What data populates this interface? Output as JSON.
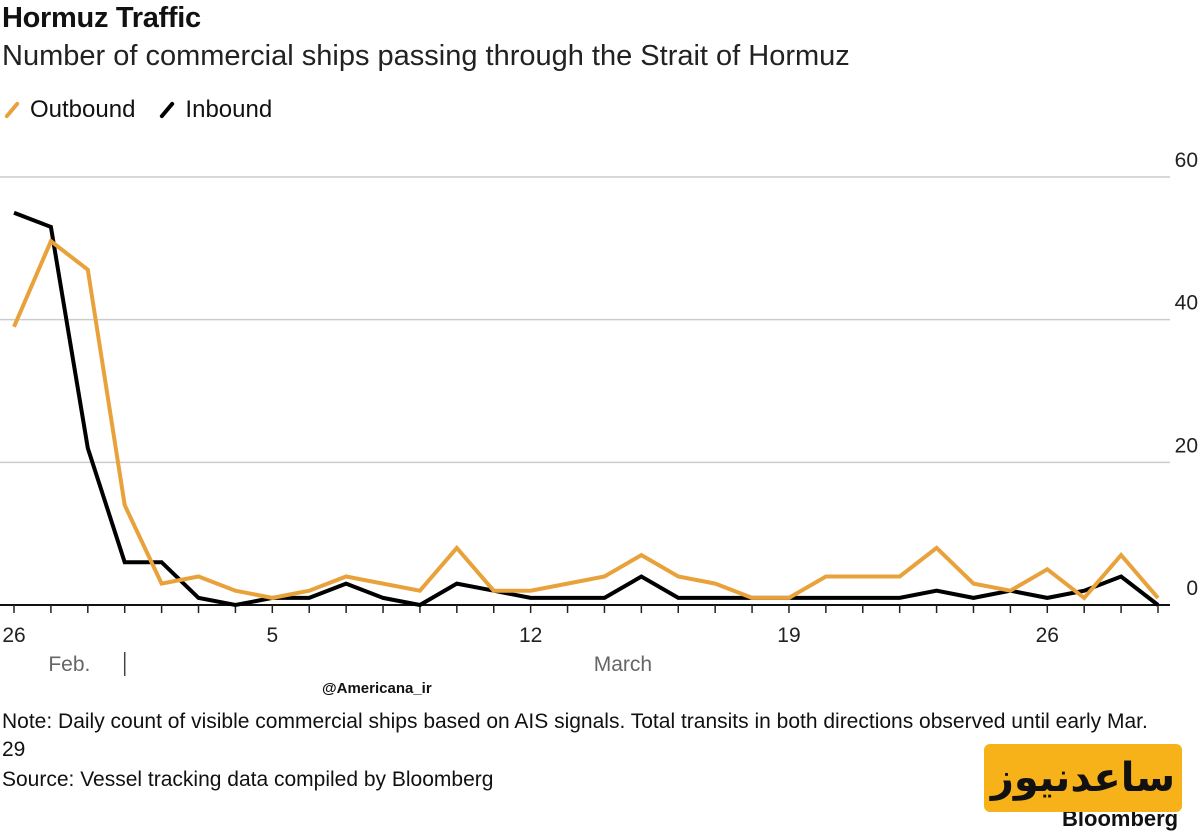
{
  "header": {
    "title": "Hormuz Traffic",
    "subtitle": "Number of commercial ships passing through the Strait of Hormuz"
  },
  "legend": {
    "outbound_label": "Outbound",
    "inbound_label": "Inbound"
  },
  "colors": {
    "outbound": "#e9a23b",
    "inbound": "#000000",
    "grid": "#cccccc"
  },
  "chart_data": {
    "type": "line",
    "title": "Hormuz Traffic",
    "subtitle": "Number of commercial ships passing through the Strait of Hormuz",
    "xlabel": "",
    "ylabel": "",
    "ylim": [
      0,
      60
    ],
    "y_ticks": [
      0,
      20,
      40,
      60
    ],
    "x_range": [
      "Feb. 26",
      "Mar. 29"
    ],
    "x_tick_labels": [
      "26",
      "5",
      "12",
      "19",
      "26"
    ],
    "x_tick_day_index": [
      0,
      7,
      14,
      21,
      28
    ],
    "month_labels": [
      {
        "label": "Feb.",
        "day_index": 1.5
      },
      {
        "label": "March",
        "day_index": 16.5
      }
    ],
    "month_divider_day_index": 3,
    "x": [
      "Feb 26",
      "Feb 27",
      "Feb 28",
      "Mar 1",
      "Mar 2",
      "Mar 3",
      "Mar 4",
      "Mar 5",
      "Mar 6",
      "Mar 7",
      "Mar 8",
      "Mar 9",
      "Mar 10",
      "Mar 11",
      "Mar 12",
      "Mar 13",
      "Mar 14",
      "Mar 15",
      "Mar 16",
      "Mar 17",
      "Mar 18",
      "Mar 19",
      "Mar 20",
      "Mar 21",
      "Mar 22",
      "Mar 23",
      "Mar 24",
      "Mar 25",
      "Mar 26",
      "Mar 27",
      "Mar 28",
      "Mar 29"
    ],
    "series": [
      {
        "name": "Outbound",
        "values": [
          39,
          51,
          47,
          14,
          3,
          4,
          2,
          1,
          2,
          4,
          3,
          2,
          8,
          2,
          2,
          3,
          4,
          7,
          4,
          3,
          1,
          1,
          4,
          4,
          4,
          8,
          3,
          2,
          5,
          1,
          7,
          1
        ]
      },
      {
        "name": "Inbound",
        "values": [
          55,
          53,
          22,
          6,
          6,
          1,
          0,
          1,
          1,
          3,
          1,
          0,
          3,
          2,
          1,
          1,
          1,
          4,
          1,
          1,
          1,
          1,
          1,
          1,
          1,
          2,
          1,
          2,
          1,
          2,
          4,
          0
        ]
      }
    ]
  },
  "footer": {
    "credit": "@Americana_ir",
    "note": "Note: Daily count of visible commercial ships based on AIS signals. Total transits in both directions observed until early Mar. 29",
    "source": "Source: Vessel tracking data compiled by Bloomberg",
    "watermark_text": "ساعدنیوز",
    "brand": "Bloomberg"
  }
}
